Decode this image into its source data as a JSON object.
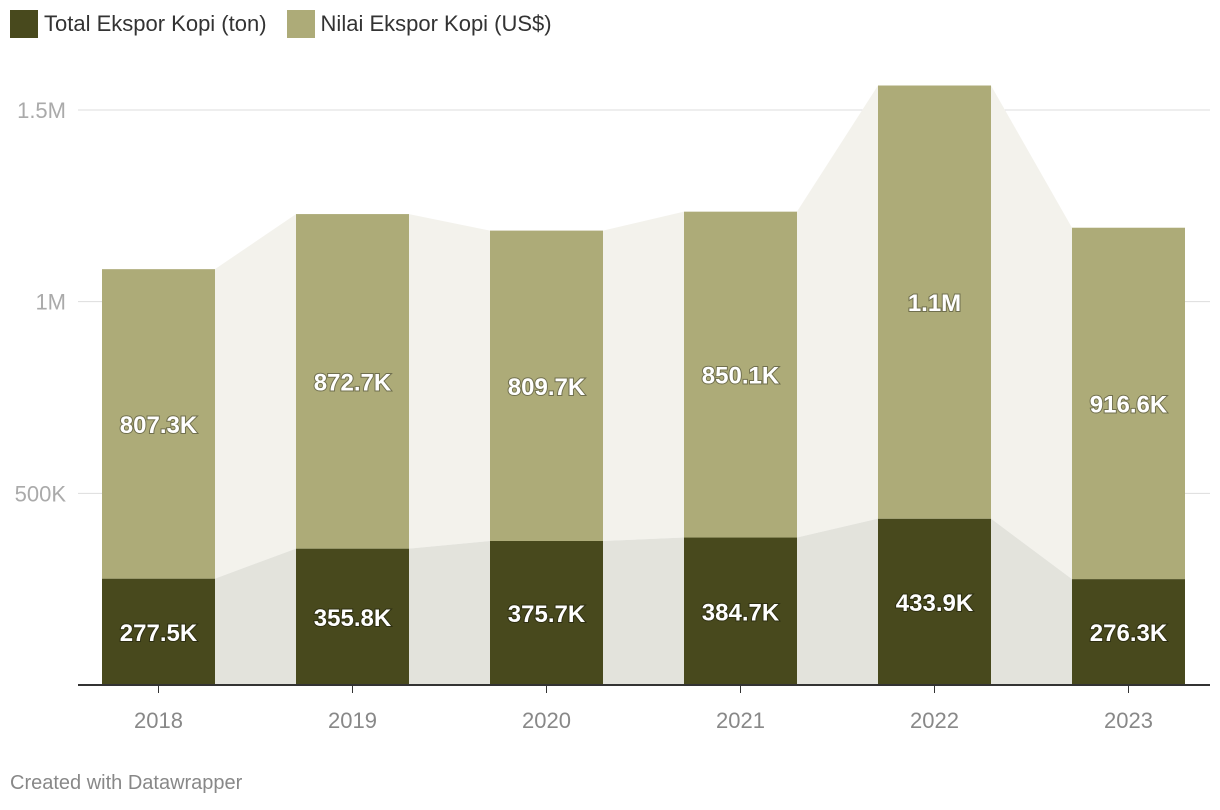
{
  "colors": {
    "series_ton": "#48491d",
    "series_usd": "#adab78",
    "area_upper": "#f3f2ec",
    "area_lower": "#e3e3dc",
    "grid": "#dddddd",
    "tick_text": "#aaaaaa",
    "xtick_text": "#888888",
    "axis": "#333333"
  },
  "chart_data": {
    "type": "bar",
    "stacked": true,
    "categories": [
      "2018",
      "2019",
      "2020",
      "2021",
      "2022",
      "2023"
    ],
    "series": [
      {
        "name": "Total Ekspor Kopi (ton)",
        "values": [
          277500,
          355800,
          375700,
          384700,
          433900,
          276300
        ],
        "labels": [
          "277.5K",
          "355.8K",
          "375.7K",
          "384.7K",
          "433.9K",
          "276.3K"
        ]
      },
      {
        "name": "Nilai Ekspor Kopi (US$)",
        "values": [
          807300,
          872700,
          809700,
          850100,
          1130000,
          916600
        ],
        "labels": [
          "807.3K",
          "872.7K",
          "809.7K",
          "850.1K",
          "1.1M",
          "916.6K"
        ]
      }
    ],
    "ylim": [
      0,
      1500000
    ],
    "yticks": [
      {
        "value": 500000,
        "label": "500K"
      },
      {
        "value": 1000000,
        "label": "1M"
      },
      {
        "value": 1500000,
        "label": "1.5M"
      }
    ],
    "grid": true,
    "legend_position": "top-left"
  },
  "footer": {
    "credit": "Created with Datawrapper"
  }
}
